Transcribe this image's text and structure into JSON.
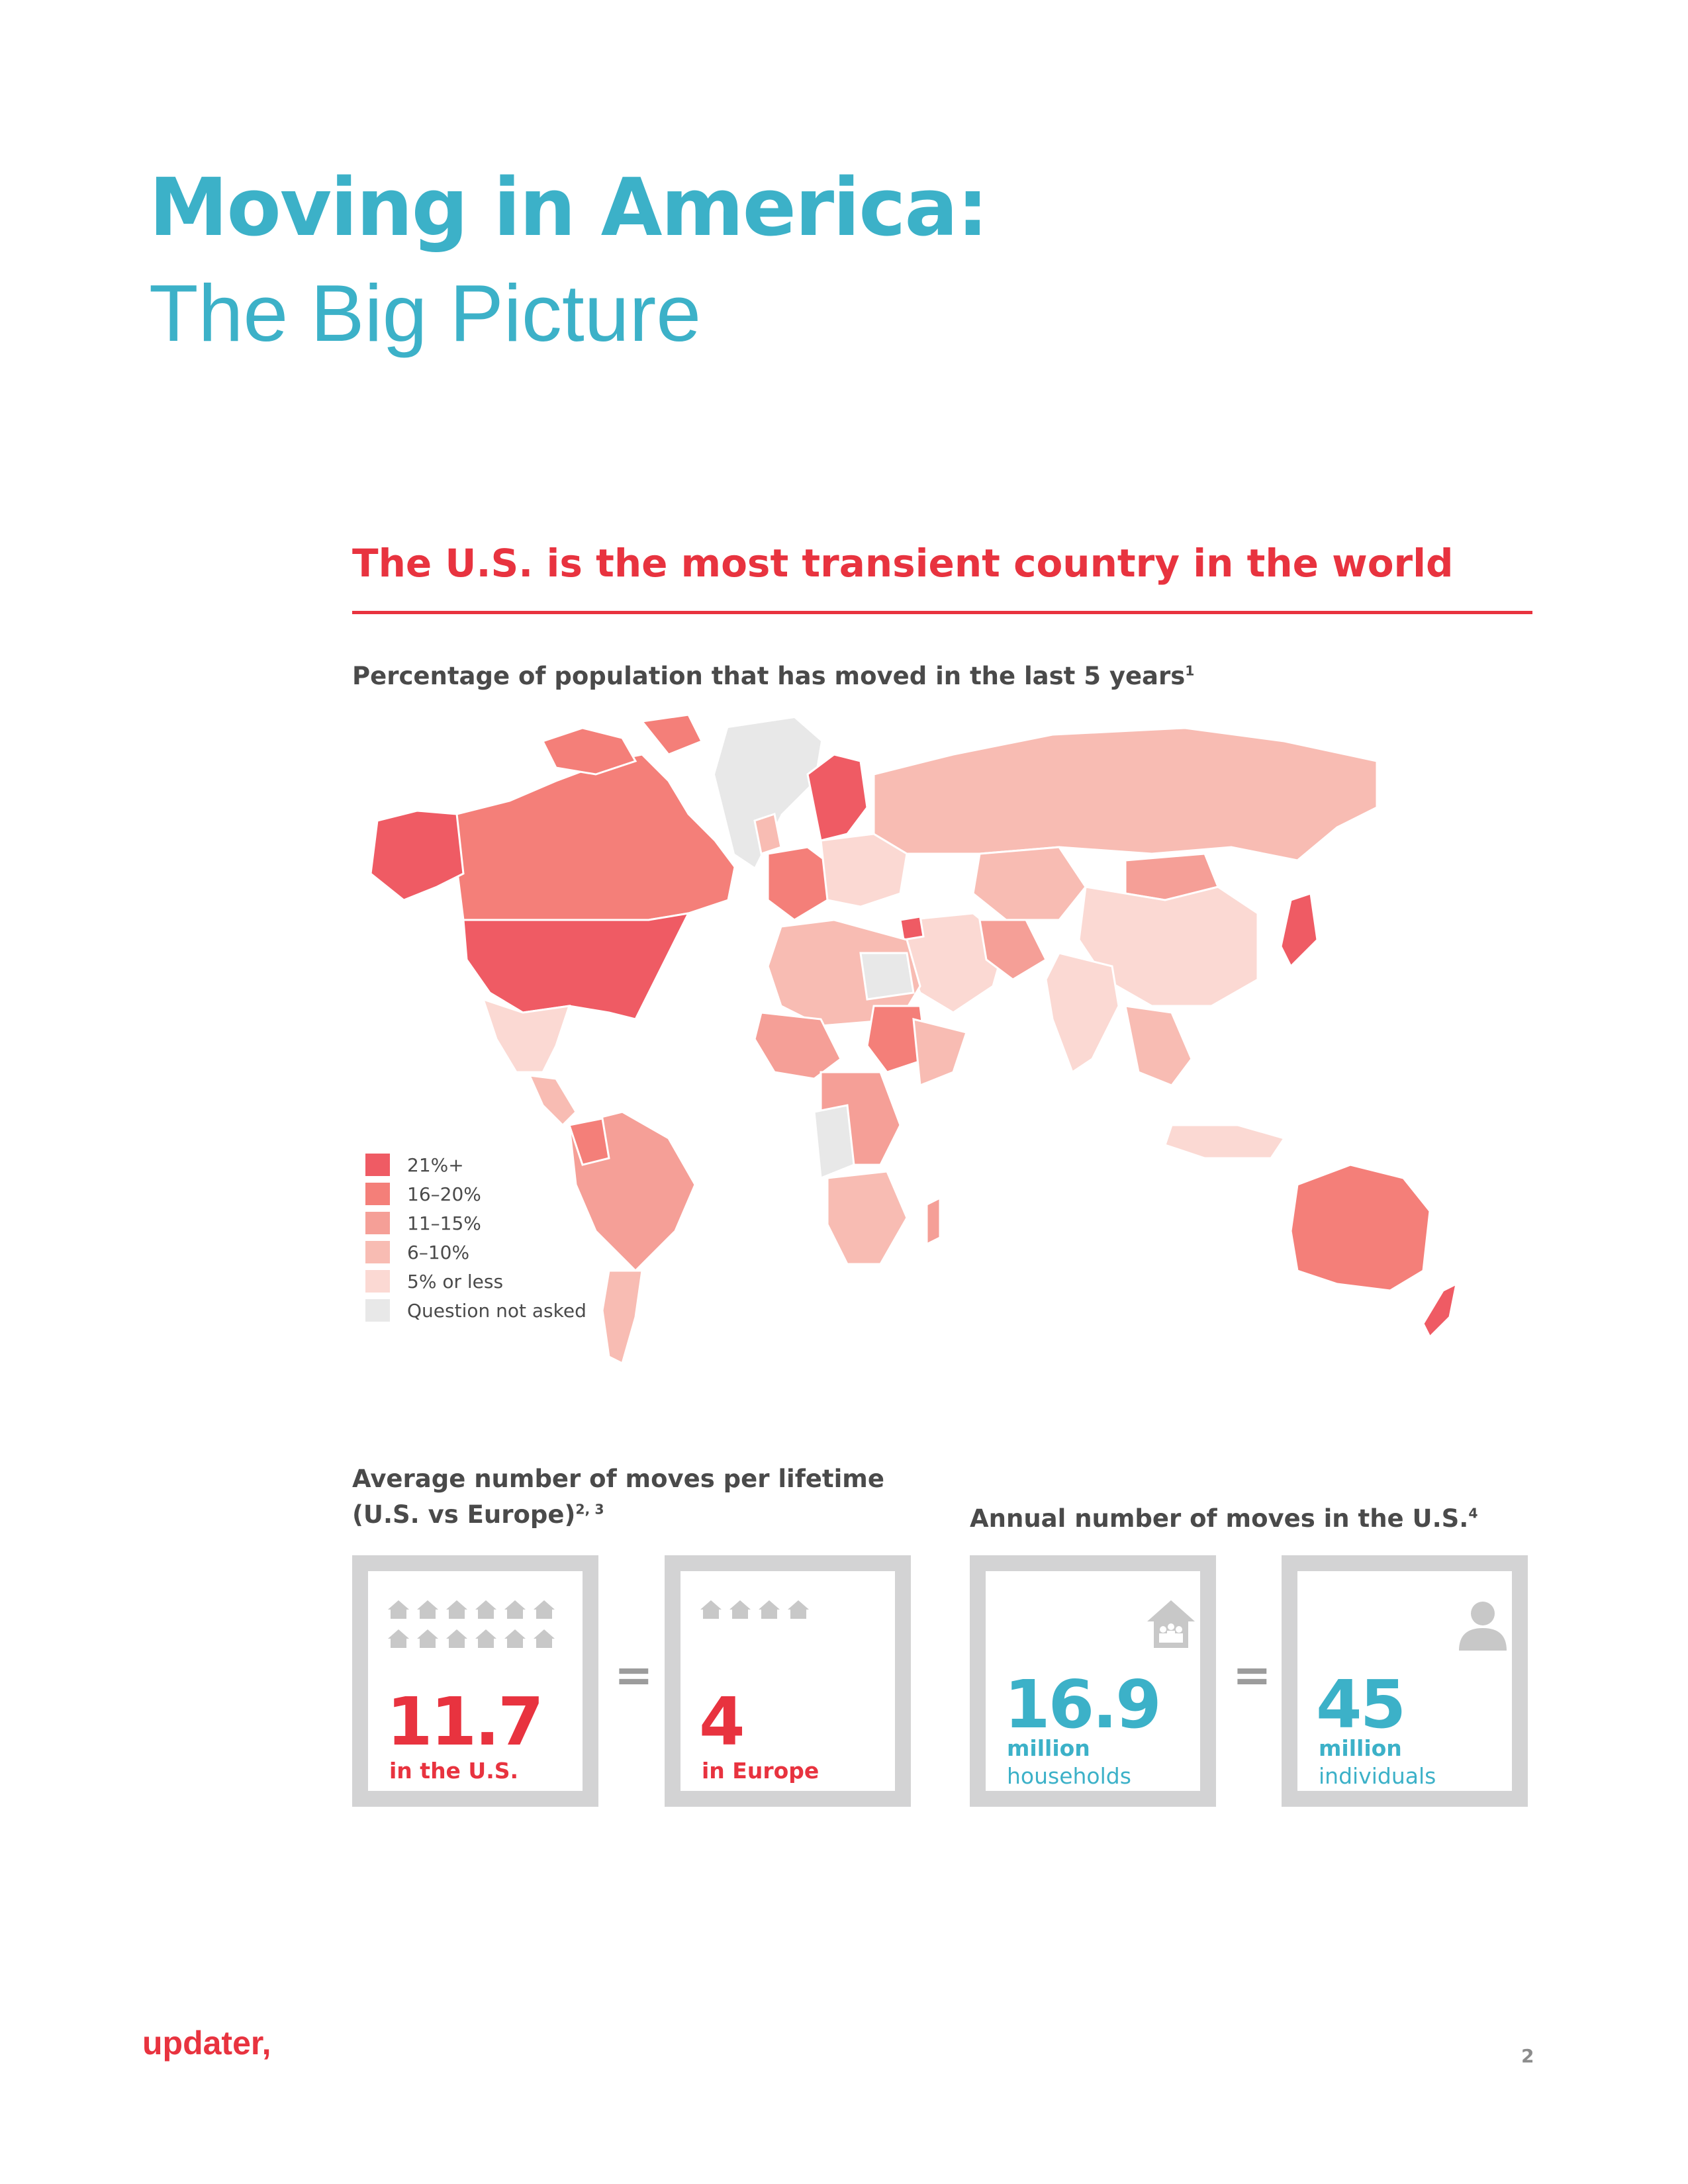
{
  "header": {
    "title": "Moving in America:",
    "subtitle": "The Big Picture"
  },
  "section": {
    "heading": "The U.S. is the most transient country in the world",
    "map_caption": "Percentage of population that has moved in the last 5 years",
    "map_caption_note": "1"
  },
  "legend": [
    {
      "label": "21%+",
      "color": "#ef5b64"
    },
    {
      "label": "16–20%",
      "color": "#f47f79"
    },
    {
      "label": "11–15%",
      "color": "#f59f97"
    },
    {
      "label": "6–10%",
      "color": "#f8bcb3"
    },
    {
      "label": "5% or less",
      "color": "#fbd9d3"
    },
    {
      "label": "Question not asked",
      "color": "#e8e8e8"
    }
  ],
  "lifetime": {
    "heading_line1": "Average number of moves per lifetime",
    "heading_line2": "(U.S. vs Europe)",
    "heading_note": "2, 3",
    "us_value": "11.7",
    "us_label": "in the U.S.",
    "europe_value": "4",
    "europe_label": "in Europe",
    "equals": "="
  },
  "annual": {
    "heading": "Annual number of moves in the U.S.",
    "heading_note": "4",
    "households_value": "16.9",
    "households_unit": "million",
    "households_label": "households",
    "individuals_value": "45",
    "individuals_unit": "million",
    "individuals_label": "individuals",
    "equals": "="
  },
  "footer": {
    "logo": "updater",
    "page_number": "2"
  }
}
